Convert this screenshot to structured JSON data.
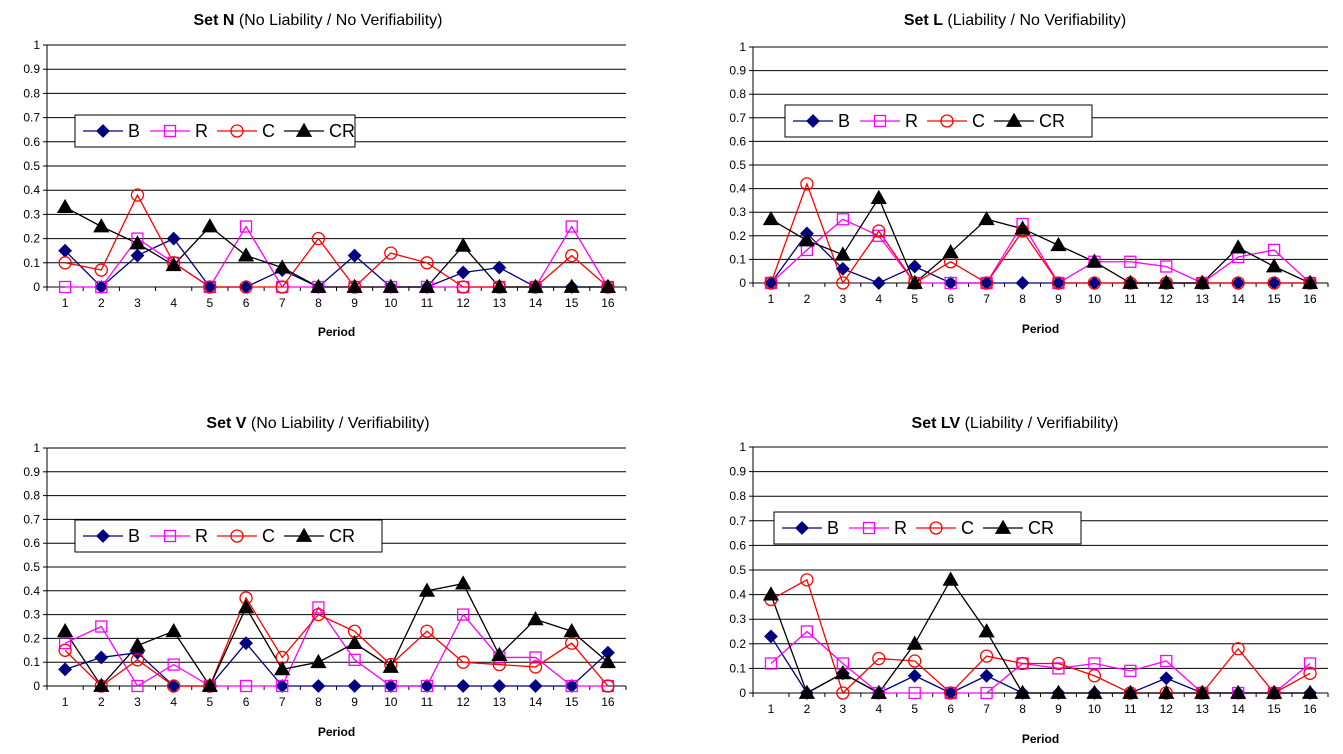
{
  "chart_data": [
    {
      "type": "line",
      "title_bold": "Set N",
      "title_rest": " (No Liability / No Verifiability)",
      "xlabel": "Period",
      "ylabel": "",
      "ylim": [
        0,
        1
      ],
      "y_ticks": [
        "0",
        "0.1",
        "0.2",
        "0.3",
        "0.4",
        "0.5",
        "0.6",
        "0.7",
        "0.8",
        "0.9",
        "1"
      ],
      "x": [
        "1",
        "2",
        "3",
        "4",
        "5",
        "6",
        "7",
        "8",
        "9",
        "10",
        "11",
        "12",
        "13",
        "14",
        "15",
        "16"
      ],
      "grid": true,
      "legend": "inside top-left",
      "series": [
        {
          "name": "B",
          "marker": "diamond",
          "color": "#000080",
          "fill": "#000080",
          "values": [
            0.15,
            0.0,
            0.13,
            0.2,
            0.0,
            0.0,
            0.07,
            0.0,
            0.13,
            0.0,
            0.0,
            0.06,
            0.08,
            0.0,
            0.0,
            0.0
          ]
        },
        {
          "name": "R",
          "marker": "square",
          "color": "#ff00ff",
          "fill": "none",
          "values": [
            0.0,
            0.0,
            0.2,
            0.1,
            0.0,
            0.25,
            0.0,
            0.0,
            0.0,
            0.0,
            0.0,
            0.0,
            0.0,
            0.0,
            0.25,
            0.0
          ]
        },
        {
          "name": "C",
          "marker": "circle",
          "color": "#ff0000",
          "fill": "none",
          "values": [
            0.1,
            0.07,
            0.38,
            0.1,
            0.0,
            0.0,
            0.0,
            0.2,
            0.0,
            0.14,
            0.1,
            0.0,
            0.0,
            0.0,
            0.13,
            0.0
          ]
        },
        {
          "name": "CR",
          "marker": "triangle",
          "color": "#000000",
          "fill": "#000000",
          "values": [
            0.33,
            0.25,
            0.18,
            0.09,
            0.25,
            0.13,
            0.08,
            0.0,
            0.0,
            0.0,
            0.0,
            0.17,
            0.0,
            0.0,
            0.0,
            0.0
          ]
        }
      ]
    },
    {
      "type": "line",
      "title_bold": "Set L",
      "title_rest": " (Liability / No Verifiability)",
      "xlabel": "Period",
      "ylabel": "",
      "ylim": [
        0,
        1
      ],
      "y_ticks": [
        "0",
        "0.1",
        "0.2",
        "0.3",
        "0.4",
        "0.5",
        "0.6",
        "0.7",
        "0.8",
        "0.9",
        "1"
      ],
      "x": [
        "1",
        "2",
        "3",
        "4",
        "5",
        "6",
        "7",
        "8",
        "9",
        "10",
        "11",
        "12",
        "13",
        "14",
        "15",
        "16"
      ],
      "grid": true,
      "legend": "inside top-left",
      "series": [
        {
          "name": "B",
          "marker": "diamond",
          "color": "#000080",
          "fill": "#000080",
          "values": [
            0.0,
            0.21,
            0.06,
            0.0,
            0.07,
            0.0,
            0.0,
            0.0,
            0.0,
            0.0,
            0.0,
            0.0,
            0.0,
            0.0,
            0.0,
            0.0
          ]
        },
        {
          "name": "R",
          "marker": "square",
          "color": "#ff00ff",
          "fill": "none",
          "values": [
            0.0,
            0.14,
            0.27,
            0.2,
            0.0,
            0.0,
            0.0,
            0.25,
            0.0,
            0.09,
            0.09,
            0.07,
            0.0,
            0.11,
            0.14,
            0.0
          ]
        },
        {
          "name": "C",
          "marker": "circle",
          "color": "#ff0000",
          "fill": "none",
          "values": [
            0.0,
            0.42,
            0.0,
            0.22,
            0.0,
            0.09,
            0.0,
            0.22,
            0.0,
            0.0,
            0.0,
            0.0,
            0.0,
            0.0,
            0.0,
            0.0
          ]
        },
        {
          "name": "CR",
          "marker": "triangle",
          "color": "#000000",
          "fill": "#000000",
          "values": [
            0.27,
            0.18,
            0.12,
            0.36,
            0.0,
            0.13,
            0.27,
            0.23,
            0.16,
            0.09,
            0.0,
            0.0,
            0.0,
            0.15,
            0.07,
            0.0
          ]
        }
      ]
    },
    {
      "type": "line",
      "title_bold": "Set V",
      "title_rest": " (No Liability / Verifiability)",
      "xlabel": "Period",
      "ylabel": "",
      "ylim": [
        0,
        1
      ],
      "y_ticks": [
        "0",
        "0.1",
        "0.2",
        "0.3",
        "0.4",
        "0.5",
        "0.6",
        "0.7",
        "0.8",
        "0.9",
        "1"
      ],
      "x": [
        "1",
        "2",
        "3",
        "4",
        "5",
        "6",
        "7",
        "8",
        "9",
        "10",
        "11",
        "12",
        "13",
        "14",
        "15",
        "16"
      ],
      "grid": true,
      "legend": "inside top-left",
      "series": [
        {
          "name": "B",
          "marker": "diamond",
          "color": "#000080",
          "fill": "#000080",
          "values": [
            0.07,
            0.12,
            0.14,
            0.0,
            0.0,
            0.18,
            0.0,
            0.0,
            0.0,
            0.0,
            0.0,
            0.0,
            0.0,
            0.0,
            0.0,
            0.14
          ]
        },
        {
          "name": "R",
          "marker": "square",
          "color": "#ff00ff",
          "fill": "none",
          "values": [
            0.18,
            0.25,
            0.0,
            0.09,
            0.0,
            0.0,
            0.0,
            0.33,
            0.11,
            0.0,
            0.0,
            0.3,
            0.12,
            0.12,
            0.0,
            0.0
          ]
        },
        {
          "name": "C",
          "marker": "circle",
          "color": "#ff0000",
          "fill": "none",
          "values": [
            0.15,
            0.0,
            0.11,
            0.0,
            0.0,
            0.37,
            0.12,
            0.3,
            0.23,
            0.09,
            0.23,
            0.1,
            0.09,
            0.08,
            0.18,
            0.0
          ]
        },
        {
          "name": "CR",
          "marker": "triangle",
          "color": "#000000",
          "fill": "#000000",
          "values": [
            0.23,
            0.0,
            0.17,
            0.23,
            0.0,
            0.33,
            0.07,
            0.1,
            0.18,
            0.08,
            0.4,
            0.43,
            0.13,
            0.28,
            0.23,
            0.1
          ]
        }
      ]
    },
    {
      "type": "line",
      "title_bold": "Set LV",
      "title_rest": " (Liability / Verifiability)",
      "xlabel": "Period",
      "ylabel": "",
      "ylim": [
        0,
        1
      ],
      "y_ticks": [
        "0",
        "0.1",
        "0.2",
        "0.3",
        "0.4",
        "0.5",
        "0.6",
        "0.7",
        "0.8",
        "0.9",
        "1"
      ],
      "x": [
        "1",
        "2",
        "3",
        "4",
        "5",
        "6",
        "7",
        "8",
        "9",
        "10",
        "11",
        "12",
        "13",
        "14",
        "15",
        "16"
      ],
      "grid": true,
      "legend": "inside top-left",
      "series": [
        {
          "name": "B",
          "marker": "diamond",
          "color": "#000080",
          "fill": "#000080",
          "values": [
            0.23,
            0.0,
            0.08,
            0.0,
            0.07,
            0.0,
            0.07,
            0.0,
            0.0,
            0.0,
            0.0,
            0.06,
            0.0,
            0.0,
            0.0,
            0.0
          ]
        },
        {
          "name": "R",
          "marker": "square",
          "color": "#ff00ff",
          "fill": "none",
          "values": [
            0.12,
            0.25,
            0.12,
            0.0,
            0.0,
            0.0,
            0.0,
            0.12,
            0.1,
            0.12,
            0.09,
            0.13,
            0.0,
            0.0,
            0.0,
            0.12
          ]
        },
        {
          "name": "C",
          "marker": "circle",
          "color": "#ff0000",
          "fill": "none",
          "values": [
            0.38,
            0.46,
            0.0,
            0.14,
            0.13,
            0.0,
            0.15,
            0.12,
            0.12,
            0.07,
            0.0,
            0.0,
            0.0,
            0.18,
            0.0,
            0.08
          ]
        },
        {
          "name": "CR",
          "marker": "triangle",
          "color": "#000000",
          "fill": "#000000",
          "values": [
            0.4,
            0.0,
            0.08,
            0.0,
            0.2,
            0.46,
            0.25,
            0.0,
            0.0,
            0.0,
            0.0,
            0.0,
            0.0,
            0.0,
            0.0,
            0.0
          ]
        }
      ]
    }
  ]
}
